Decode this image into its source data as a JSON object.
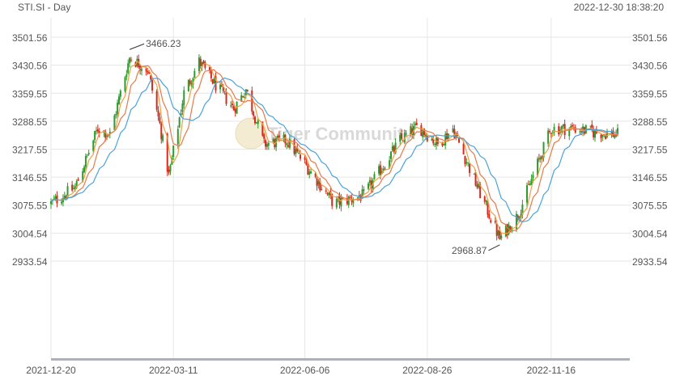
{
  "symbol_label": "STI.SI - Day",
  "timestamp": "2022-12-30 18:38:20",
  "watermark": "Tiger Community",
  "colors": {
    "up": "#2e9b2e",
    "down": "#d42a1f",
    "ma_short": "#f0a040",
    "ma_mid": "#e8794a",
    "ma_long": "#4aa3d8",
    "grid": "#e6e6e6"
  },
  "chart_data": {
    "type": "candlestick",
    "title": "",
    "xlabel": "",
    "ylabel": "",
    "y_ticks": [
      "3501.56",
      "3430.56",
      "3359.55",
      "3288.55",
      "3217.55",
      "3146.55",
      "3075.55",
      "3004.54",
      "2933.54"
    ],
    "ylim": [
      2933.54,
      3501.56
    ],
    "x_ticks": [
      "2021-12-20",
      "2022-03-11",
      "2022-06-06",
      "2022-08-26",
      "2022-11-16"
    ],
    "x_range": [
      "2021-12-20",
      "2022-12-30"
    ],
    "grid": true,
    "annotations": [
      {
        "text": "3466.23",
        "date": "2022-02-10",
        "value": 3466.23,
        "kind": "high"
      },
      {
        "text": "2968.87",
        "date": "2022-10-13",
        "value": 2968.87,
        "kind": "low"
      }
    ],
    "price_path": [
      {
        "date": "2021-12-20",
        "close": 3080
      },
      {
        "date": "2022-01-05",
        "close": 3120
      },
      {
        "date": "2022-01-20",
        "close": 3270
      },
      {
        "date": "2022-01-28",
        "close": 3255
      },
      {
        "date": "2022-02-10",
        "close": 3450
      },
      {
        "date": "2022-02-22",
        "close": 3420
      },
      {
        "date": "2022-03-02",
        "close": 3280
      },
      {
        "date": "2022-03-08",
        "close": 3150
      },
      {
        "date": "2022-03-18",
        "close": 3360
      },
      {
        "date": "2022-03-28",
        "close": 3440
      },
      {
        "date": "2022-04-08",
        "close": 3380
      },
      {
        "date": "2022-04-20",
        "close": 3320
      },
      {
        "date": "2022-04-28",
        "close": 3370
      },
      {
        "date": "2022-05-10",
        "close": 3230
      },
      {
        "date": "2022-05-25",
        "close": 3240
      },
      {
        "date": "2022-06-10",
        "close": 3160
      },
      {
        "date": "2022-06-25",
        "close": 3080
      },
      {
        "date": "2022-07-15",
        "close": 3100
      },
      {
        "date": "2022-08-08",
        "close": 3240
      },
      {
        "date": "2022-08-20",
        "close": 3275
      },
      {
        "date": "2022-09-02",
        "close": 3230
      },
      {
        "date": "2022-09-12",
        "close": 3270
      },
      {
        "date": "2022-09-25",
        "close": 3150
      },
      {
        "date": "2022-10-13",
        "close": 2990
      },
      {
        "date": "2022-10-25",
        "close": 3050
      },
      {
        "date": "2022-11-08",
        "close": 3190
      },
      {
        "date": "2022-11-16",
        "close": 3270
      },
      {
        "date": "2022-12-01",
        "close": 3270
      },
      {
        "date": "2022-12-15",
        "close": 3260
      },
      {
        "date": "2022-12-30",
        "close": 3255
      }
    ],
    "series": [
      {
        "type": "ma",
        "color": "#f0a040",
        "period": 5
      },
      {
        "type": "ma",
        "color": "#e8794a",
        "period": 10
      },
      {
        "type": "ma",
        "color": "#4aa3d8",
        "period": 20
      }
    ]
  }
}
